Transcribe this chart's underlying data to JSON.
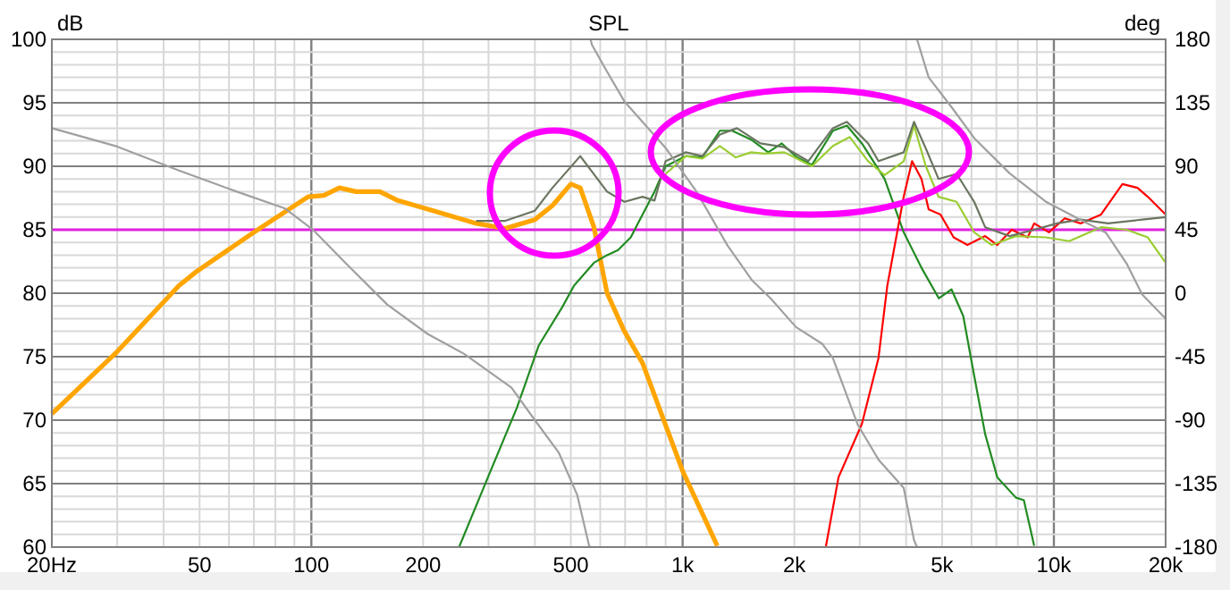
{
  "chart_data": {
    "type": "line",
    "title": "SPL",
    "ylabel": "dB",
    "y2label": "deg",
    "log": "x",
    "grid": true,
    "marker": "none",
    "line_style": "solid",
    "xlim": [
      20,
      20000
    ],
    "ylim": [
      60,
      100
    ],
    "y2lim": [
      -180,
      180
    ],
    "xticks": [
      {
        "value": 20,
        "label": "20Hz"
      },
      50,
      100,
      200,
      500,
      {
        "value": 1000,
        "label": "1k"
      },
      {
        "value": 2000,
        "label": "2k"
      },
      {
        "value": 5000,
        "label": "5k"
      },
      {
        "value": 10000,
        "label": "10k"
      },
      {
        "value": 20000,
        "label": "20k"
      }
    ],
    "yticks": [
      60,
      65,
      70,
      75,
      80,
      85,
      90,
      95,
      100
    ],
    "y2ticks": [
      -180,
      -135,
      -90,
      -45,
      0,
      45,
      90,
      135,
      180
    ],
    "ref_lines": [
      {
        "axis": "y",
        "value": 85,
        "color": "#e020e0"
      }
    ],
    "series": [
      {
        "color": "#ffa500",
        "x": [
          20,
          30,
          44,
          49,
          70,
          98,
          108,
          119,
          132,
          153,
          171,
          213,
          278,
          333,
          400,
          446,
          500,
          530,
          577,
          626,
          697,
          780,
          1000,
          1240
        ],
        "values": [
          70.5,
          75.4,
          80.6,
          81.7,
          84.8,
          87.6,
          87.7,
          88.3,
          88.0,
          88.0,
          87.3,
          86.5,
          85.5,
          85.1,
          85.8,
          86.9,
          88.6,
          88.3,
          85.2,
          80,
          77,
          74.5,
          66,
          60.1
        ]
      },
      {
        "color": "#228b22",
        "x": [
          250,
          299,
          358,
          410,
          474,
          510,
          577,
          626,
          670,
          725,
          780,
          840,
          900,
          1020,
          1130,
          1260,
          1360,
          1530,
          1700,
          1850,
          2030,
          2230,
          2540,
          2770,
          3040,
          3500,
          3940,
          4400,
          4900,
          5300,
          5700,
          6100,
          6530,
          7040,
          7900,
          8300,
          8850
        ],
        "values": [
          60,
          65.5,
          71,
          75.9,
          78.9,
          80.6,
          82.4,
          83,
          83.4,
          84.4,
          86.2,
          88,
          90,
          90.8,
          90.7,
          92.8,
          92.8,
          92.1,
          91.1,
          91.8,
          90.7,
          90.1,
          92.8,
          93.2,
          91.8,
          89,
          84.8,
          82,
          79.6,
          80.3,
          78.2,
          73.5,
          68.9,
          65.5,
          63.9,
          63.7,
          60.1
        ]
      },
      {
        "color": "#ff0000",
        "x": [
          2430,
          2630,
          3040,
          3370,
          3560,
          3940,
          4150,
          4400,
          4600,
          4950,
          5370,
          5850,
          6530,
          7040,
          7700,
          8500,
          8850,
          9700,
          10700,
          11800,
          13400,
          15300,
          16800,
          17900,
          20000
        ],
        "values": [
          60,
          65.5,
          69.7,
          74.9,
          80.6,
          87.6,
          90.4,
          89,
          86.6,
          86.2,
          84.4,
          83.8,
          84.5,
          83.8,
          85,
          84.4,
          85.5,
          84.8,
          85.9,
          85.5,
          86.2,
          88.6,
          88.3,
          87.6,
          86.2
        ]
      },
      {
        "color": "#9acd32",
        "x": [
          900,
          1020,
          1130,
          1260,
          1390,
          1530,
          1660,
          1880,
          2230,
          2540,
          2820,
          3160,
          3500,
          3940,
          4200,
          4520,
          4890,
          5470,
          6100,
          6800,
          7900,
          9500,
          11000,
          13400,
          15700,
          17900,
          20000
        ],
        "values": [
          89.4,
          90.8,
          90.6,
          91.6,
          90.7,
          91.1,
          91,
          91.1,
          90,
          91.6,
          92.3,
          90.4,
          89.3,
          90.4,
          93.2,
          90,
          87.6,
          87.2,
          84.8,
          83.8,
          84.5,
          84.4,
          84.1,
          85.2,
          85,
          84.4,
          82.4
        ]
      },
      {
        "color": "#6a7560",
        "x": [
          278,
          333,
          400,
          446,
          530,
          626,
          697,
          780,
          840,
          900,
          1020,
          1130,
          1260,
          1400,
          1620,
          1880,
          2180,
          2540,
          2770,
          3160,
          3370,
          3940,
          4200,
          4520,
          4890,
          5470,
          6100,
          6530,
          7600,
          8850,
          10200,
          11800,
          14000,
          17300,
          20000
        ],
        "values": [
          85.7,
          85.7,
          86.5,
          88.3,
          90.8,
          88,
          87.2,
          87.6,
          87.3,
          90.4,
          91.1,
          90.8,
          92.5,
          93,
          91.8,
          91.5,
          90.4,
          93,
          93.5,
          91.8,
          90.4,
          91.1,
          93.5,
          91.4,
          89,
          89.4,
          87.2,
          85.2,
          84.5,
          85,
          85.5,
          85.8,
          85.5,
          85.8,
          86
        ]
      },
      {
        "color": "#a0a0a0",
        "axis": "y2",
        "x": [
          20,
          30,
          44,
          63,
          85,
          101,
          123,
          160,
          206,
          258,
          346,
          400,
          464,
          520,
          560,
          565,
          null,
          565,
          570,
          626,
          697,
          900,
          1090,
          1320,
          1540,
          1730,
          2020,
          2380,
          2540,
          2960,
          3370,
          3940,
          4200,
          4280,
          null,
          4280,
          4600,
          5300,
          6100,
          7600,
          9500,
          11800,
          13800,
          15700,
          17300,
          20000
        ],
        "values": [
          117,
          104,
          87,
          72,
          60,
          45,
          22,
          -8,
          -29,
          -43,
          -67,
          -90,
          -113,
          -143,
          -179,
          -180,
          null,
          180,
          176,
          157,
          136,
          103,
          72,
          34,
          9,
          -4,
          -24,
          -36,
          -46,
          -93,
          -118,
          -138,
          -175,
          -180,
          null,
          180,
          153,
          132,
          110,
          85,
          65,
          52,
          43,
          21,
          -1,
          -18
        ]
      }
    ]
  }
}
